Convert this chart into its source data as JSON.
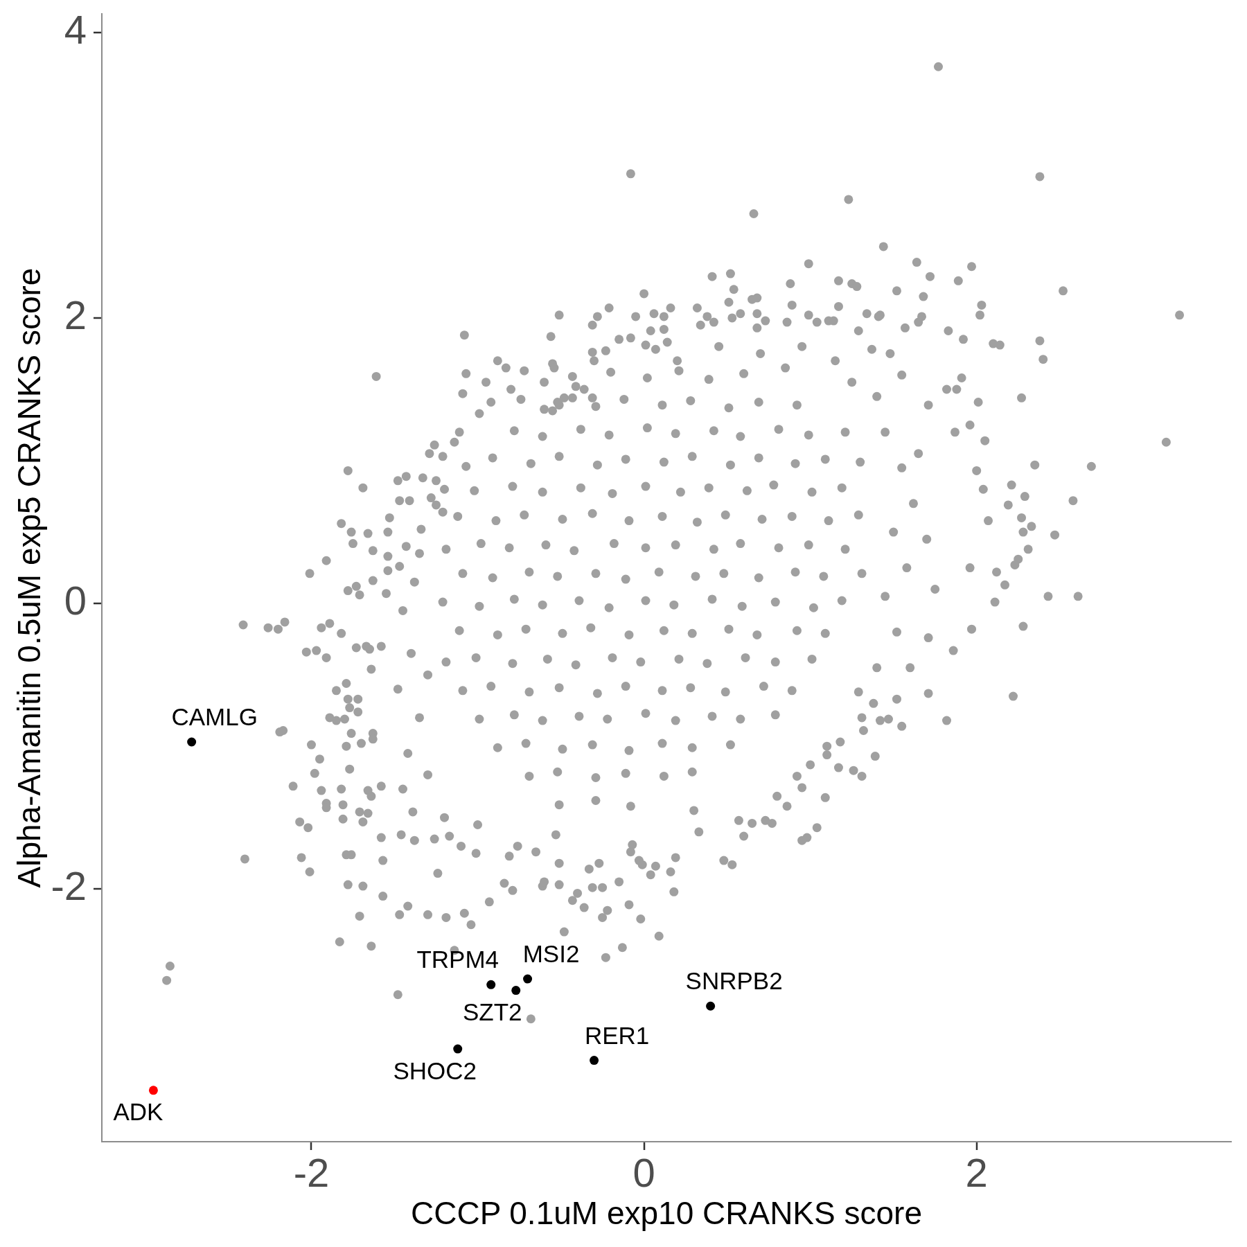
{
  "chart_data": {
    "type": "scatter",
    "xlabel": "CCCP 0.1uM exp10 CRANKS score",
    "ylabel": "Alpha-Amanitin 0.5uM exp5 CRANKS score",
    "xlim": [
      -3.26,
      3.53
    ],
    "ylim": [
      -3.77,
      4.13
    ],
    "xticks": [
      -2,
      0,
      2
    ],
    "yticks": [
      -2,
      0,
      2,
      4
    ],
    "marker": "circle",
    "series": [
      {
        "color": "#a0a0a0",
        "x": [
          -0.08,
          1.77,
          2.38,
          1.23,
          0.66,
          1.44,
          2.52,
          3.22,
          0.99,
          1.64,
          1.97,
          1.89,
          1.72,
          1.52,
          1.17,
          1.25,
          1.28,
          0.88,
          0.52,
          0.41,
          0.54,
          0,
          0.89,
          1.17,
          2.03,
          2.02,
          1.68,
          1.67,
          1.65,
          1.83,
          1.92,
          2.1,
          2.14,
          2.38,
          2.4,
          2.27,
          2.01,
          1.82,
          1.88,
          1.91,
          1.71,
          1.34,
          1.29,
          1.57,
          1.37,
          0.32,
          -0.05,
          0.16,
          0.06,
          0.12,
          0.04,
          0.12,
          0.14,
          -0.08,
          0.01,
          0.07,
          0.34,
          0.38,
          0.42,
          0.51,
          0.53,
          0.58,
          0.65,
          0.68,
          0.68,
          0.73,
          0.68,
          0.86,
          0.99,
          1.04,
          1.11,
          1.14,
          1.41,
          1.42,
          -1.61,
          -1.08,
          -1.07,
          -1.09,
          -0.88,
          -0.83,
          -0.72,
          -0.74,
          -0.92,
          -0.51,
          -0.56,
          -0.21,
          -0.28,
          -0.31,
          -0.31,
          -0.23,
          -0.3,
          -0.55,
          -0.54,
          -0.43,
          -0.41,
          -0.36,
          -0.48,
          -0.43,
          -0.6,
          -0.55,
          -0.51,
          -0.31,
          -0.99,
          -0.6,
          -0.15,
          0.2,
          0.45,
          0.7,
          0.95,
          1.15,
          1.25,
          0.85,
          -0.8,
          -0.95,
          3.14,
          2.69,
          2.35,
          2.58,
          2.47,
          2.21,
          2.29,
          2.19,
          2.27,
          2.33,
          2.28,
          2.31,
          2.25,
          2.23,
          2.12,
          2.17,
          2.11,
          2.43,
          2.61,
          2.28,
          2.22,
          1.82,
          1.71,
          1.97,
          1.86,
          1.96,
          2.04,
          2.07,
          2.05,
          1.96,
          1.87,
          2,
          1.71,
          1.55,
          1.52,
          1.42,
          1.47,
          1.32,
          1.31,
          1.38,
          1.39,
          1.31,
          1.26,
          1.17,
          1.09,
          0.95,
          0.92,
          1,
          1.18,
          1.04,
          0.86,
          0.73,
          0.77,
          0.57,
          0.65,
          1.1,
          1.1,
          1.29,
          1.45,
          1.55,
          1.62,
          1.5,
          1.58,
          1.45,
          1.52,
          1.4,
          1.65,
          1.7,
          1.75,
          1.6,
          1.4,
          1.55,
          1.48,
          0.95,
          0.98,
          0.53,
          0.09,
          -0.02,
          0.18,
          0.16,
          0.04,
          0.07,
          -0.09,
          -0.13,
          0.19,
          -0.01,
          -0.03,
          -0.08,
          -2.4,
          -2.06,
          -2.01,
          -1.79,
          -1.76,
          -1.78,
          -1.69,
          -1.71,
          -1.83,
          -1.64,
          -2.85,
          -2.87,
          -1.48,
          -0.68,
          -1.14,
          -0.48,
          -0.23,
          -1.57,
          -1.57,
          -1.47,
          -1.42,
          -1.3,
          -1.19,
          -1.08,
          -1.04,
          -0.93,
          -0.84,
          -0.79,
          -1.24,
          -0.51,
          -0.61,
          -0.6,
          -0.43,
          -0.4,
          -0.36,
          -0.25,
          -0.22,
          -0.31,
          -0.25,
          -0.15,
          -1.58,
          -1.46,
          -1.38,
          -1.26,
          -1.17,
          -1.1,
          -1.01,
          -0.76,
          -0.65,
          -0.51,
          -0.33,
          -0.27,
          -0.07,
          0.33,
          0.48,
          0.6,
          -0.53,
          -0.81,
          -1,
          -1.2,
          -1.39,
          0.8,
          0.3,
          -2.41,
          -2.26,
          -2.2,
          -2.16,
          -1.78,
          -1.69,
          -1.82,
          -1.76,
          -1.66,
          -1.75,
          -1.63,
          -1.91,
          -2.01,
          -1.63,
          -1.78,
          -1.73,
          -1.71,
          -1.94,
          -1.89,
          -1.82,
          -2.03,
          -1.97,
          -1.91,
          -1.73,
          -1.67,
          -1.65,
          -1.58,
          -1.64,
          -1.85,
          -1.79,
          -1.78,
          -1.72,
          -1.77,
          -1.72,
          -1.89,
          -1.85,
          -1.8,
          -2.19,
          -2.17,
          -2,
          -1.95,
          -1.98,
          -2.11,
          -1.94,
          -1.82,
          -1.91,
          -1.91,
          -1.81,
          -1.81,
          -2.07,
          -2.02,
          -1.71,
          -1.66,
          -1.69,
          -1.76,
          -1.79,
          -1.77,
          -1.7,
          -1.63,
          -1.63,
          -1.66,
          -1.64,
          -1.58,
          -1.48,
          -1.43,
          -1.54,
          -1.34,
          -1.26,
          -1.29,
          -1.21,
          -1.11,
          -1.14,
          -1.33,
          -1.25,
          -1.07,
          -1.2,
          -1.28,
          -1.25,
          -1.21,
          -1.47,
          -1.41,
          -1.43,
          -1.54,
          -1.54,
          -1.47,
          -1.55,
          -1.53,
          -1.45,
          -1.4,
          -1.48,
          -1.35,
          -1.42,
          -1.3,
          -1.38,
          -1.3,
          -1.45,
          -1.35,
          -0.2,
          0.02,
          0.21,
          0.39,
          0.6,
          -0.52,
          -0.29,
          -0.12,
          0.11,
          0.28,
          0.51,
          0.69,
          0.92,
          -0.78,
          -0.61,
          -0.38,
          -0.21,
          0.02,
          0.19,
          0.42,
          0.58,
          0.81,
          0.99,
          1.21,
          -0.91,
          -0.68,
          -0.51,
          -0.28,
          -0.11,
          0.12,
          0.29,
          0.52,
          0.69,
          0.91,
          1.09,
          1.3,
          -1.02,
          -0.79,
          -0.61,
          -0.38,
          -0.19,
          0.01,
          0.22,
          0.39,
          0.62,
          0.78,
          1.01,
          1.19,
          -1.12,
          -0.89,
          -0.72,
          -0.49,
          -0.31,
          -0.09,
          0.11,
          0.32,
          0.49,
          0.71,
          0.89,
          1.11,
          1.29,
          -1.19,
          -0.98,
          -0.81,
          -0.59,
          -0.42,
          -0.18,
          0.01,
          0.19,
          0.42,
          0.58,
          0.81,
          0.99,
          1.21,
          -1.09,
          -0.91,
          -0.69,
          -0.52,
          -0.29,
          -0.11,
          0.09,
          0.31,
          0.48,
          0.69,
          0.91,
          1.08,
          1.31,
          -1.21,
          -0.99,
          -0.78,
          -0.61,
          -0.39,
          -0.21,
          0.01,
          0.18,
          0.41,
          0.59,
          0.79,
          1.02,
          1.19,
          -1.11,
          -0.88,
          -0.71,
          -0.49,
          -0.32,
          -0.09,
          0.12,
          0.29,
          0.51,
          0.68,
          0.92,
          1.09,
          -1.19,
          -1.01,
          -0.79,
          -0.58,
          -0.41,
          -0.19,
          -0.02,
          0.21,
          0.38,
          0.61,
          0.79,
          1.01,
          -1.09,
          -0.92,
          -0.69,
          -0.51,
          -0.28,
          -0.11,
          0.11,
          0.28,
          0.49,
          0.72,
          0.89,
          -0.99,
          -0.78,
          -0.61,
          -0.39,
          -0.22,
          0.01,
          0.19,
          0.41,
          0.58,
          0.79,
          -0.88,
          -0.71,
          -0.49,
          -0.31,
          -0.09,
          0.11,
          0.29,
          0.52,
          -0.69,
          -0.52,
          -0.29,
          -0.11,
          0.12,
          0.29,
          -0.51,
          -0.29,
          -0.08
        ],
        "values": [
          3.01,
          3.76,
          2.99,
          2.83,
          2.73,
          2.5,
          2.19,
          2.02,
          2.38,
          2.39,
          2.36,
          2.26,
          2.29,
          2.19,
          2.26,
          2.24,
          2.22,
          2.24,
          2.31,
          2.29,
          2.2,
          2.17,
          2.09,
          2.08,
          2.09,
          2.02,
          2.15,
          2.01,
          1.97,
          1.91,
          1.85,
          1.82,
          1.81,
          1.84,
          1.71,
          1.44,
          1.41,
          1.5,
          1.5,
          1.58,
          1.39,
          2.03,
          1.91,
          1.93,
          1.78,
          2.07,
          2.01,
          2.07,
          2.03,
          2.01,
          1.91,
          1.92,
          1.83,
          1.86,
          1.81,
          1.78,
          1.95,
          2.01,
          1.97,
          2.11,
          2,
          2.03,
          2.13,
          2.14,
          2.03,
          1.98,
          1.93,
          1.97,
          2.02,
          1.97,
          1.98,
          1.98,
          2.01,
          2.02,
          1.59,
          1.88,
          1.61,
          1.47,
          1.7,
          1.65,
          1.63,
          1.43,
          1.41,
          2.02,
          1.87,
          2.07,
          2.01,
          1.95,
          1.76,
          1.77,
          1.7,
          1.68,
          1.65,
          1.59,
          1.52,
          1.5,
          1.44,
          1.44,
          1.36,
          1.35,
          1.39,
          1.44,
          1.33,
          1.55,
          1.85,
          1.7,
          1.8,
          1.75,
          1.8,
          1.7,
          1.55,
          1.65,
          1.5,
          1.55,
          1.13,
          0.96,
          0.97,
          0.72,
          0.48,
          0.83,
          0.75,
          0.69,
          0.6,
          0.54,
          0.5,
          0.38,
          0.31,
          0.27,
          0.22,
          0.13,
          0.01,
          0.05,
          0.05,
          -0.16,
          -0.65,
          -0.82,
          -0.63,
          -0.18,
          -0.33,
          0.25,
          0.8,
          0.58,
          1.14,
          1.25,
          1.2,
          0.93,
          -0.24,
          -0.86,
          -0.67,
          -0.82,
          -0.81,
          -0.89,
          -0.8,
          -0.7,
          -1.07,
          -1.21,
          -1.17,
          -1.15,
          -1.36,
          -1.29,
          -1.21,
          -1.13,
          -0.97,
          -1.57,
          -1.42,
          -1.52,
          -1.54,
          -1.52,
          -1.54,
          -1,
          -1.06,
          -0.62,
          1.2,
          0.95,
          0.7,
          0.5,
          0.25,
          0.05,
          -0.2,
          -0.45,
          1.05,
          0.45,
          0.1,
          -0.45,
          1.45,
          1.6,
          1.75,
          -1.66,
          -1.64,
          -1.83,
          -2.33,
          -2.21,
          -2.02,
          -1.88,
          -1.9,
          -1.84,
          -2.11,
          -2.41,
          -1.78,
          -1.83,
          -1.8,
          -1.74,
          -1.79,
          -1.78,
          -1.88,
          -1.76,
          -1.76,
          -1.97,
          -1.98,
          -2.19,
          -2.37,
          -2.4,
          -2.54,
          -2.64,
          -2.74,
          -2.91,
          -2.43,
          -2.3,
          -2.48,
          -1.8,
          -2.05,
          -2.18,
          -2.12,
          -2.18,
          -2.2,
          -2.17,
          -2.25,
          -2.09,
          -1.96,
          -2.01,
          -1.89,
          -1.97,
          -1.98,
          -1.95,
          -2.08,
          -2.03,
          -2.13,
          -2.2,
          -2.15,
          -1.99,
          -1.99,
          -1.95,
          -1.64,
          -1.62,
          -1.66,
          -1.65,
          -1.63,
          -1.7,
          -1.75,
          -1.7,
          -1.74,
          -1.82,
          -1.86,
          -1.82,
          -1.69,
          -1.6,
          -1.8,
          -1.63,
          -1.62,
          -1.77,
          -1.55,
          -1.5,
          -1.46,
          -1.35,
          -1.45,
          -0.15,
          -0.17,
          -0.18,
          -0.13,
          0.93,
          0.81,
          0.56,
          0.5,
          0.49,
          0.42,
          0.37,
          0.3,
          0.21,
          0.16,
          0.09,
          0.12,
          0.06,
          -0.17,
          -0.14,
          -0.21,
          -0.34,
          -0.33,
          -0.38,
          -0.31,
          -0.3,
          -0.32,
          -0.3,
          -0.46,
          -0.61,
          -0.56,
          -0.67,
          -0.67,
          -0.73,
          -0.76,
          -0.8,
          -0.82,
          -0.81,
          -0.9,
          -0.89,
          -0.99,
          -1.09,
          -1.19,
          -1.28,
          -1.31,
          -1.3,
          -1.4,
          -1.43,
          -1.41,
          -1.51,
          -1.53,
          -1.57,
          -1.46,
          -1.47,
          -1.53,
          -0.91,
          -1,
          -1.16,
          -0.98,
          -0.91,
          -0.95,
          -1.31,
          -1.35,
          -1.28,
          0.86,
          0.89,
          0.5,
          0.52,
          1.11,
          1.05,
          1.03,
          1.2,
          1.13,
          0.88,
          0.86,
          0.96,
          0.8,
          0.74,
          0.69,
          0.64,
          0.72,
          0.72,
          0.4,
          0.33,
          0.23,
          0.26,
          0.07,
          0.6,
          -0.05,
          -0.35,
          -0.6,
          -0.8,
          -1.05,
          -1.2,
          0.15,
          -0.5,
          -1.3,
          0.35,
          1.62,
          1.58,
          1.63,
          1.57,
          1.61,
          1.41,
          1.38,
          1.43,
          1.39,
          1.42,
          1.37,
          1.41,
          1.39,
          1.21,
          1.17,
          1.22,
          1.18,
          1.23,
          1.19,
          1.21,
          1.17,
          1.22,
          1.18,
          1.2,
          1.02,
          0.98,
          1.03,
          0.97,
          1.01,
          0.99,
          1.03,
          0.97,
          1.02,
          0.98,
          1.01,
          0.99,
          0.79,
          0.82,
          0.78,
          0.81,
          0.77,
          0.82,
          0.78,
          0.81,
          0.79,
          0.83,
          0.78,
          0.81,
          0.61,
          0.58,
          0.62,
          0.59,
          0.63,
          0.58,
          0.61,
          0.57,
          0.62,
          0.59,
          0.61,
          0.58,
          0.62,
          0.38,
          0.42,
          0.39,
          0.41,
          0.37,
          0.42,
          0.39,
          0.41,
          0.38,
          0.42,
          0.39,
          0.41,
          0.38,
          0.21,
          0.18,
          0.22,
          0.19,
          0.21,
          0.17,
          0.22,
          0.19,
          0.21,
          0.18,
          0.22,
          0.19,
          0.21,
          0.01,
          -0.02,
          0.03,
          -0.01,
          0.02,
          -0.03,
          0.02,
          -0.01,
          0.03,
          -0.02,
          0.01,
          -0.03,
          0.02,
          -0.19,
          -0.22,
          -0.18,
          -0.21,
          -0.17,
          -0.22,
          -0.19,
          -0.21,
          -0.18,
          -0.22,
          -0.19,
          -0.21,
          -0.41,
          -0.38,
          -0.42,
          -0.39,
          -0.43,
          -0.38,
          -0.41,
          -0.39,
          -0.42,
          -0.38,
          -0.41,
          -0.39,
          -0.61,
          -0.58,
          -0.62,
          -0.59,
          -0.63,
          -0.58,
          -0.61,
          -0.59,
          -0.62,
          -0.58,
          -0.61,
          -0.81,
          -0.78,
          -0.82,
          -0.79,
          -0.81,
          -0.77,
          -0.82,
          -0.79,
          -0.81,
          -0.78,
          -1.01,
          -0.98,
          -1.02,
          -0.99,
          -1.03,
          -0.98,
          -1.01,
          -0.99,
          -1.21,
          -1.18,
          -1.22,
          -1.19,
          -1.21,
          -1.18,
          -1.41,
          -1.38,
          -1.42
        ]
      },
      {
        "color": "#000000",
        "x": [
          -2.72,
          -0.92,
          -0.7,
          -0.77,
          -1.12,
          -0.3,
          0.4
        ],
        "values": [
          -0.97,
          -2.67,
          -2.63,
          -2.71,
          -3.12,
          -3.2,
          -2.82
        ]
      },
      {
        "color": "#ff0000",
        "x": [
          -2.95
        ],
        "values": [
          -3.41
        ]
      }
    ],
    "annotations": [
      {
        "text": "CAMLG",
        "x": -2.72,
        "y": -0.97
      },
      {
        "text": "TRPM4",
        "x": -0.92,
        "y": -2.67
      },
      {
        "text": "MSI2",
        "x": -0.7,
        "y": -2.63
      },
      {
        "text": "SZT2",
        "x": -0.77,
        "y": -2.71
      },
      {
        "text": "SHOC2",
        "x": -1.12,
        "y": -3.12
      },
      {
        "text": "RER1",
        "x": -0.3,
        "y": -3.2
      },
      {
        "text": "SNRPB2",
        "x": 0.4,
        "y": -2.82
      },
      {
        "text": "ADK",
        "x": -2.95,
        "y": -3.41
      }
    ]
  }
}
